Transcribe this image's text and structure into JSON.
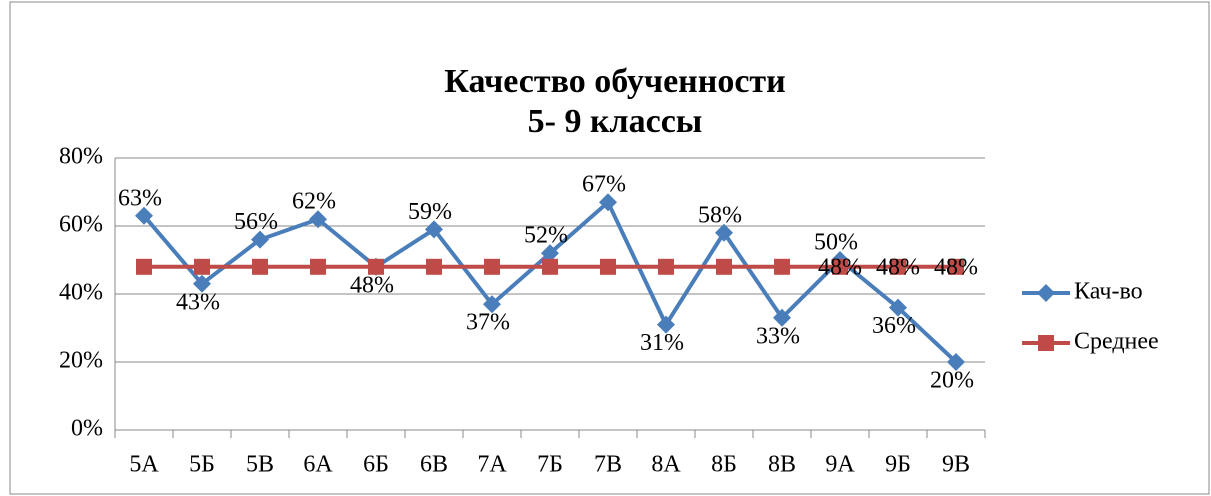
{
  "chart_data": {
    "type": "line",
    "title": [
      "Качество обученности",
      "5- 9 классы"
    ],
    "categories": [
      "5А",
      "5Б",
      "5В",
      "6А",
      "6Б",
      "6В",
      "7А",
      "7Б",
      "7В",
      "8А",
      "8Б",
      "8В",
      "9А",
      "9Б",
      "9В"
    ],
    "series": [
      {
        "name": "Кач-во",
        "color": "#4a7ebb",
        "marker": "diamond",
        "values": [
          63,
          43,
          56,
          62,
          48,
          59,
          37,
          52,
          67,
          31,
          58,
          33,
          50,
          36,
          20
        ],
        "value_labels": [
          "63%",
          "43%",
          "56%",
          "62%",
          "48%",
          "59%",
          "37%",
          "52%",
          "67%",
          "31%",
          "58%",
          "33%",
          "50%",
          "36%",
          "20%"
        ]
      },
      {
        "name": "Среднее",
        "color": "#be4b48",
        "marker": "square",
        "values": [
          48,
          48,
          48,
          48,
          48,
          48,
          48,
          48,
          48,
          48,
          48,
          48,
          48,
          48,
          48
        ],
        "value_labels": [
          null,
          null,
          null,
          null,
          null,
          null,
          null,
          null,
          null,
          null,
          null,
          null,
          "48%",
          "48%",
          "48%"
        ]
      }
    ],
    "ylim": [
      0,
      80
    ],
    "yticks": [
      {
        "value": 0,
        "label": "0%"
      },
      {
        "value": 20,
        "label": "20%"
      },
      {
        "value": 40,
        "label": "40%"
      },
      {
        "value": 60,
        "label": "60%"
      },
      {
        "value": 80,
        "label": "80%"
      }
    ],
    "grid": true,
    "legend": "right"
  }
}
